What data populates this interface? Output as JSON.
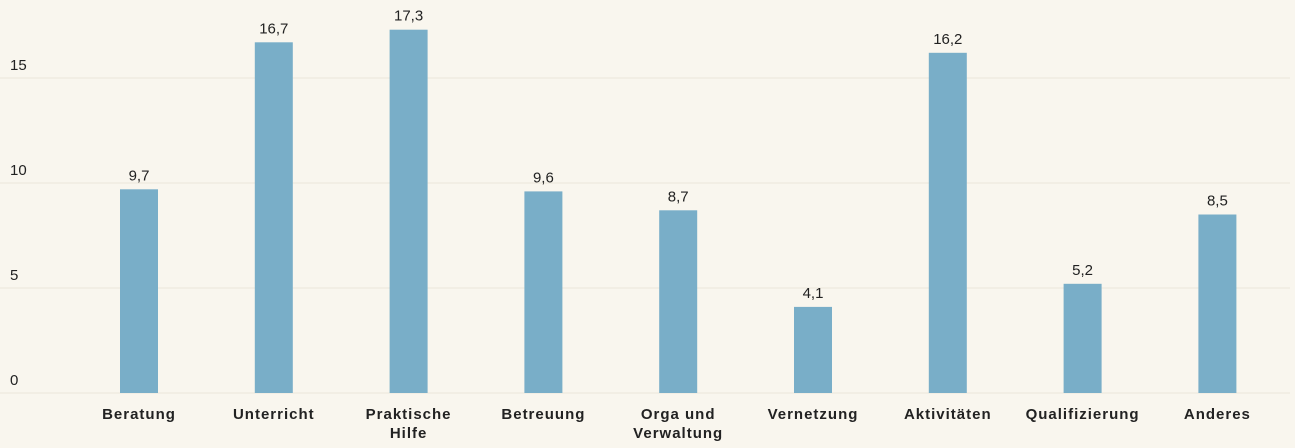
{
  "chart_data": {
    "type": "bar",
    "categories": [
      "Beratung",
      "Unterricht",
      "Praktische Hilfe",
      "Betreuung",
      "Orga und Verwaltung",
      "Vernetzung",
      "Aktivitäten",
      "Qualifizierung",
      "Anderes"
    ],
    "values": [
      9.7,
      16.7,
      17.3,
      9.6,
      8.7,
      4.1,
      16.2,
      5.2,
      8.5
    ],
    "value_labels": [
      "9,7",
      "16,7",
      "17,3",
      "9,6",
      "8,7",
      "4,1",
      "16,2",
      "5,2",
      "8,5"
    ],
    "color": "#79aec8",
    "ylim": [
      0,
      18
    ],
    "yticks": [
      0,
      5,
      10,
      15
    ],
    "grid": true
  }
}
